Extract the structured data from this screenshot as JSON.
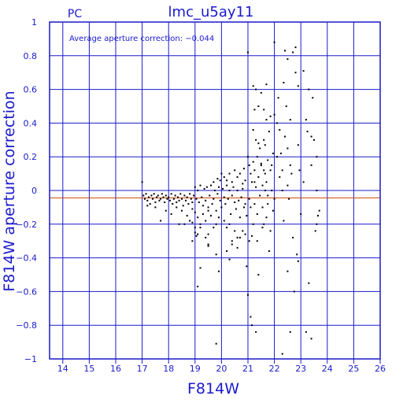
{
  "chart_data": {
    "type": "scatter",
    "title": "lmc_u5ay11",
    "corner_label": "PC",
    "xlabel": "F814W",
    "ylabel": "F814W aperture correction",
    "annotation": "Average aperture correction: −0.044",
    "xlim": [
      13.5,
      26
    ],
    "ylim": [
      -1,
      1
    ],
    "x_ticks": [
      14,
      15,
      16,
      17,
      18,
      19,
      20,
      21,
      22,
      23,
      24,
      25,
      26
    ],
    "y_ticks": [
      -1,
      -0.8,
      -0.6,
      -0.4,
      -0.2,
      0,
      0.2,
      0.4,
      0.6,
      0.8,
      1
    ],
    "y_tick_labels": [
      "−1",
      "−0.8",
      "−0.6",
      "−0.4",
      "−0.2",
      "0",
      "0.2",
      "0.4",
      "0.6",
      "0.8",
      "1"
    ],
    "grid": true,
    "average_line": -0.044,
    "colors": {
      "frame": "#1a1acc",
      "average_line": "#cc4400",
      "points": "#000000",
      "title": "#1a1acc"
    },
    "points": [
      [
        17.0,
        0.05
      ],
      [
        17.05,
        -0.03
      ],
      [
        17.1,
        -0.05
      ],
      [
        17.15,
        -0.02
      ],
      [
        17.2,
        -0.06
      ],
      [
        17.25,
        -0.04
      ],
      [
        17.3,
        -0.08
      ],
      [
        17.35,
        -0.03
      ],
      [
        17.4,
        -0.05
      ],
      [
        17.45,
        -0.02
      ],
      [
        17.5,
        -0.07
      ],
      [
        17.55,
        -0.04
      ],
      [
        17.6,
        -0.03
      ],
      [
        17.65,
        -0.06
      ],
      [
        17.7,
        -0.05
      ],
      [
        17.75,
        -0.02
      ],
      [
        17.8,
        -0.04
      ],
      [
        17.85,
        -0.07
      ],
      [
        17.9,
        -0.03
      ],
      [
        17.95,
        -0.05
      ],
      [
        18.0,
        -0.04
      ],
      [
        18.05,
        -0.06
      ],
      [
        18.1,
        -0.02
      ],
      [
        18.15,
        -0.08
      ],
      [
        18.2,
        -0.05
      ],
      [
        18.25,
        -0.03
      ],
      [
        18.3,
        -0.07
      ],
      [
        18.35,
        -0.04
      ],
      [
        18.4,
        -0.06
      ],
      [
        18.45,
        -0.02
      ],
      [
        18.5,
        -0.05
      ],
      [
        18.55,
        -0.09
      ],
      [
        18.6,
        -0.03
      ],
      [
        18.65,
        -0.06
      ],
      [
        18.7,
        -0.04
      ],
      [
        18.75,
        -0.08
      ],
      [
        18.8,
        -0.02
      ],
      [
        18.85,
        -0.05
      ],
      [
        18.9,
        -0.07
      ],
      [
        18.95,
        -0.03
      ],
      [
        17.2,
        -0.09
      ],
      [
        17.5,
        -0.1
      ],
      [
        17.7,
        -0.18
      ],
      [
        17.9,
        -0.12
      ],
      [
        18.1,
        -0.14
      ],
      [
        18.3,
        -0.1
      ],
      [
        18.5,
        -0.12
      ],
      [
        18.7,
        -0.15
      ],
      [
        18.9,
        -0.11
      ],
      [
        19.0,
        -0.13
      ],
      [
        18.6,
        -0.2
      ],
      [
        18.8,
        -0.18
      ],
      [
        19.0,
        -0.22
      ],
      [
        19.1,
        -0.16
      ],
      [
        19.2,
        -0.2
      ],
      [
        19.3,
        -0.14
      ],
      [
        19.4,
        -0.18
      ],
      [
        19.5,
        -0.12
      ],
      [
        19.05,
        -0.27
      ],
      [
        19.0,
        -0.25
      ],
      [
        19.2,
        -0.22
      ],
      [
        18.4,
        -0.2
      ],
      [
        18.9,
        -0.19
      ],
      [
        19.0,
        0.02
      ],
      [
        19.05,
        -0.05
      ],
      [
        19.1,
        0.0
      ],
      [
        19.15,
        -0.07
      ],
      [
        19.2,
        0.03
      ],
      [
        19.25,
        -0.04
      ],
      [
        19.3,
        -0.09
      ],
      [
        19.35,
        0.01
      ],
      [
        19.4,
        -0.06
      ],
      [
        19.45,
        0.02
      ],
      [
        19.5,
        -0.1
      ],
      [
        19.55,
        -0.03
      ],
      [
        19.6,
        0.03
      ],
      [
        19.65,
        -0.08
      ],
      [
        19.7,
        -0.05
      ],
      [
        19.75,
        0.0
      ],
      [
        19.8,
        -0.12
      ],
      [
        19.85,
        -0.02
      ],
      [
        19.9,
        0.02
      ],
      [
        19.95,
        -0.06
      ],
      [
        20.0,
        -0.1
      ],
      [
        20.05,
        0.01
      ],
      [
        20.1,
        -0.04
      ],
      [
        20.15,
        -0.08
      ],
      [
        20.2,
        0.03
      ],
      [
        20.25,
        -0.05
      ],
      [
        20.3,
        0.0
      ],
      [
        20.35,
        -0.14
      ],
      [
        20.4,
        -0.03
      ],
      [
        20.45,
        0.02
      ],
      [
        20.5,
        -0.07
      ],
      [
        20.55,
        -0.11
      ],
      [
        20.6,
        0.0
      ],
      [
        20.65,
        -0.06
      ],
      [
        20.7,
        -0.16
      ],
      [
        20.75,
        -0.04
      ],
      [
        20.8,
        0.01
      ],
      [
        20.85,
        -0.1
      ],
      [
        20.9,
        -0.08
      ],
      [
        20.95,
        -0.15
      ],
      [
        19.6,
        -0.15
      ],
      [
        19.8,
        -0.2
      ],
      [
        19.9,
        -0.16
      ],
      [
        20.1,
        -0.18
      ],
      [
        20.3,
        -0.2
      ],
      [
        20.5,
        -0.24
      ],
      [
        20.6,
        -0.28
      ],
      [
        20.8,
        -0.24
      ],
      [
        19.5,
        -0.26
      ],
      [
        19.7,
        -0.22
      ],
      [
        20.4,
        -0.3
      ],
      [
        20.6,
        -0.34
      ],
      [
        20.9,
        -0.26
      ],
      [
        20.2,
        -0.22
      ],
      [
        19.1,
        -0.26
      ],
      [
        19.8,
        -0.38
      ],
      [
        20.2,
        -0.36
      ],
      [
        20.4,
        -0.32
      ],
      [
        20.7,
        -0.28
      ],
      [
        19.5,
        -0.32
      ],
      [
        19.4,
        -0.28
      ],
      [
        19.5,
        -0.33
      ],
      [
        19.2,
        -0.46
      ],
      [
        19.1,
        -0.57
      ],
      [
        18.9,
        -0.3
      ],
      [
        19.9,
        -0.48
      ],
      [
        20.3,
        -0.41
      ],
      [
        20.95,
        -0.45
      ],
      [
        19.8,
        -0.91
      ],
      [
        19.95,
        0.06
      ],
      [
        20.0,
        0.1
      ],
      [
        20.1,
        0.08
      ],
      [
        20.2,
        0.06
      ],
      [
        20.3,
        0.1
      ],
      [
        20.4,
        0.05
      ],
      [
        20.5,
        0.12
      ],
      [
        20.6,
        0.08
      ],
      [
        20.7,
        0.1
      ],
      [
        20.8,
        0.04
      ],
      [
        20.85,
        0.13
      ],
      [
        20.9,
        0.06
      ],
      [
        19.7,
        0.05
      ],
      [
        19.85,
        0.07
      ],
      [
        21.0,
        0.82
      ],
      [
        21.0,
        0.2
      ],
      [
        21.05,
        0.15
      ],
      [
        21.1,
        0.1
      ],
      [
        21.15,
        0.05
      ],
      [
        21.2,
        0.17
      ],
      [
        21.25,
        0.12
      ],
      [
        21.3,
        0.02
      ],
      [
        21.35,
        0.2
      ],
      [
        21.4,
        0.08
      ],
      [
        21.45,
        0.25
      ],
      [
        21.5,
        0.15
      ],
      [
        21.55,
        0.03
      ],
      [
        21.6,
        0.3
      ],
      [
        21.65,
        0.1
      ],
      [
        21.7,
        0.05
      ],
      [
        21.75,
        0.18
      ],
      [
        21.8,
        0.35
      ],
      [
        21.85,
        0.12
      ],
      [
        21.9,
        0.0
      ],
      [
        21.95,
        0.22
      ],
      [
        22.0,
        0.45
      ],
      [
        21.05,
        -0.05
      ],
      [
        21.1,
        -0.1
      ],
      [
        21.2,
        -0.2
      ],
      [
        21.25,
        -0.08
      ],
      [
        21.35,
        -0.14
      ],
      [
        21.45,
        -0.03
      ],
      [
        21.55,
        -0.22
      ],
      [
        21.65,
        0.0
      ],
      [
        21.75,
        -0.03
      ],
      [
        21.85,
        -0.24
      ],
      [
        21.95,
        -0.12
      ],
      [
        22.0,
        -0.05
      ],
      [
        21.2,
        0.62
      ],
      [
        21.4,
        0.5
      ],
      [
        21.5,
        0.58
      ],
      [
        21.6,
        0.48
      ],
      [
        21.7,
        0.42
      ],
      [
        21.85,
        0.44
      ],
      [
        21.3,
        0.6
      ],
      [
        21.7,
        0.63
      ],
      [
        21.3,
        0.3
      ],
      [
        21.4,
        0.28
      ],
      [
        21.65,
        0.27
      ],
      [
        21.9,
        0.15
      ],
      [
        21.5,
        0.16
      ],
      [
        21.6,
        0.12
      ],
      [
        21.2,
        0.36
      ],
      [
        21.25,
        0.48
      ],
      [
        21.8,
        -0.36
      ],
      [
        21.4,
        -0.5
      ],
      [
        21.1,
        -0.75
      ],
      [
        21.15,
        -0.8
      ],
      [
        21.3,
        -0.84
      ],
      [
        21.0,
        -0.62
      ],
      [
        21.05,
        -0.3
      ],
      [
        21.15,
        -0.27
      ],
      [
        21.6,
        -0.2
      ],
      [
        21.7,
        -0.16
      ],
      [
        21.35,
        -0.3
      ],
      [
        21.55,
        -0.1
      ],
      [
        21.75,
        -0.08
      ],
      [
        21.25,
        0.05
      ],
      [
        22.0,
        0.88
      ],
      [
        22.1,
        0.2
      ],
      [
        22.2,
        0.08
      ],
      [
        22.3,
        0.12
      ],
      [
        22.5,
        0.03
      ],
      [
        22.8,
        0.85
      ],
      [
        22.3,
        -0.97
      ],
      [
        22.4,
        0.83
      ],
      [
        22.5,
        0.78
      ],
      [
        22.6,
        0.42
      ],
      [
        22.7,
        0.82
      ],
      [
        22.8,
        0.7
      ],
      [
        22.9,
        0.62
      ],
      [
        22.5,
        0.25
      ],
      [
        22.6,
        0.15
      ],
      [
        22.4,
        0.32
      ],
      [
        22.2,
        0.36
      ],
      [
        22.1,
        0.4
      ],
      [
        22.3,
        0.0
      ],
      [
        22.55,
        -0.05
      ],
      [
        22.35,
        -0.18
      ],
      [
        22.7,
        -0.28
      ],
      [
        22.85,
        -0.38
      ],
      [
        22.75,
        -0.6
      ],
      [
        22.5,
        -0.48
      ],
      [
        22.6,
        -0.84
      ],
      [
        22.9,
        -0.42
      ],
      [
        22.65,
        0.1
      ],
      [
        22.25,
        0.22
      ],
      [
        22.45,
        0.5
      ],
      [
        22.15,
        0.55
      ],
      [
        22.35,
        0.64
      ],
      [
        23.1,
        0.71
      ],
      [
        23.3,
        0.6
      ],
      [
        23.2,
        0.42
      ],
      [
        23.4,
        0.32
      ],
      [
        23.5,
        0.3
      ],
      [
        23.6,
        0.2
      ],
      [
        23.4,
        0.15
      ],
      [
        23.6,
        0.0
      ],
      [
        23.7,
        -0.12
      ],
      [
        23.65,
        -0.15
      ],
      [
        23.55,
        -0.24
      ],
      [
        23.0,
        -0.14
      ],
      [
        23.3,
        -0.55
      ],
      [
        23.2,
        -0.84
      ],
      [
        23.4,
        -0.88
      ],
      [
        23.6,
        -0.2
      ],
      [
        23.1,
        0.05
      ],
      [
        23.25,
        0.35
      ],
      [
        23.45,
        0.55
      ],
      [
        22.9,
        0.27
      ],
      [
        22.95,
        0.12
      ]
    ]
  }
}
